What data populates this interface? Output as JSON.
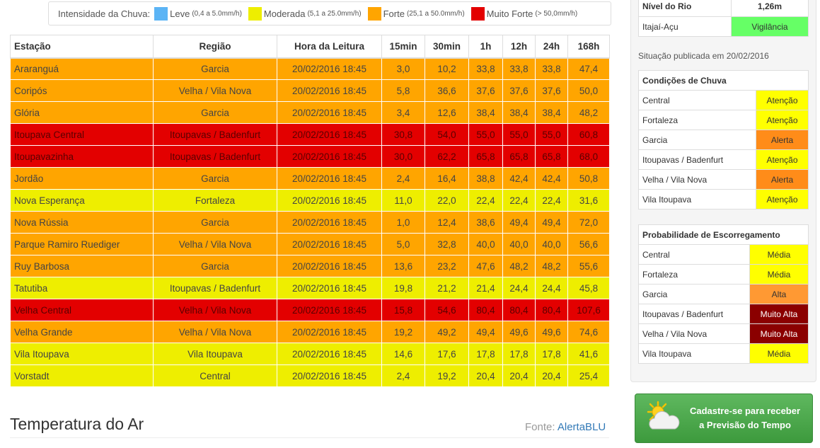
{
  "legend": {
    "title": "Intensidade da Chuva:",
    "items": [
      {
        "label": "Leve",
        "range": "(0,4 a 5.0mm/h)",
        "color": "#5bb4f5"
      },
      {
        "label": "Moderada",
        "range": "(5,1 a 25.0mm/h)",
        "color": "#eeee00"
      },
      {
        "label": "Forte",
        "range": "(25,1 a 50.0mm/h)",
        "color": "#ffa500"
      },
      {
        "label": "Muito Forte",
        "range": "(> 50,0mm/h)",
        "color": "#e30000"
      }
    ]
  },
  "table": {
    "headers": [
      "Estação",
      "Região",
      "Hora da Leitura",
      "15min",
      "30min",
      "1h",
      "12h",
      "24h",
      "168h"
    ],
    "rows": [
      {
        "level": "laranja",
        "cells": [
          "Araranguá",
          "Garcia",
          "20/02/2016 18:45",
          "3,0",
          "10,2",
          "33,8",
          "33,8",
          "33,8",
          "47,4"
        ]
      },
      {
        "level": "laranja",
        "cells": [
          "Coripós",
          "Velha / Vila Nova",
          "20/02/2016 18:45",
          "5,8",
          "36,6",
          "37,6",
          "37,6",
          "37,6",
          "50,0"
        ]
      },
      {
        "level": "laranja",
        "cells": [
          "Glória",
          "Garcia",
          "20/02/2016 18:45",
          "3,4",
          "12,6",
          "38,4",
          "38,4",
          "38,4",
          "48,2"
        ]
      },
      {
        "level": "vermelho",
        "cells": [
          "Itoupava Central",
          "Itoupavas / Badenfurt",
          "20/02/2016 18:45",
          "30,8",
          "54,0",
          "55,0",
          "55,0",
          "55,0",
          "60,8"
        ]
      },
      {
        "level": "vermelho",
        "cells": [
          "Itoupavazinha",
          "Itoupavas / Badenfurt",
          "20/02/2016 18:45",
          "30,0",
          "62,2",
          "65,8",
          "65,8",
          "65,8",
          "68,0"
        ]
      },
      {
        "level": "laranja",
        "cells": [
          "Jordão",
          "Garcia",
          "20/02/2016 18:45",
          "2,4",
          "16,4",
          "38,8",
          "42,4",
          "42,4",
          "50,8"
        ]
      },
      {
        "level": "amarelo",
        "cells": [
          "Nova Esperança",
          "Fortaleza",
          "20/02/2016 18:45",
          "11,0",
          "22,0",
          "22,4",
          "22,4",
          "22,4",
          "31,6"
        ]
      },
      {
        "level": "laranja",
        "cells": [
          "Nova Rússia",
          "Garcia",
          "20/02/2016 18:45",
          "1,0",
          "12,4",
          "38,6",
          "49,4",
          "49,4",
          "72,0"
        ]
      },
      {
        "level": "laranja",
        "cells": [
          "Parque Ramiro Ruediger",
          "Velha / Vila Nova",
          "20/02/2016 18:45",
          "5,0",
          "32,8",
          "40,0",
          "40,0",
          "40,0",
          "56,6"
        ]
      },
      {
        "level": "laranja",
        "cells": [
          "Ruy Barbosa",
          "Garcia",
          "20/02/2016 18:45",
          "13,6",
          "23,2",
          "47,6",
          "48,2",
          "48,2",
          "55,6"
        ]
      },
      {
        "level": "amarelo",
        "cells": [
          "Tatutiba",
          "Itoupavas / Badenfurt",
          "20/02/2016 18:45",
          "19,8",
          "21,2",
          "21,4",
          "24,4",
          "24,4",
          "45,8"
        ]
      },
      {
        "level": "vermelho",
        "cells": [
          "Velha Central",
          "Velha / Vila Nova",
          "20/02/2016 18:45",
          "15,8",
          "54,6",
          "80,4",
          "80,4",
          "80,4",
          "107,6"
        ]
      },
      {
        "level": "laranja",
        "cells": [
          "Velha Grande",
          "Velha / Vila Nova",
          "20/02/2016 18:45",
          "19,2",
          "49,2",
          "49,4",
          "49,6",
          "49,6",
          "74,6"
        ]
      },
      {
        "level": "amarelo",
        "cells": [
          "Vila Itoupava",
          "Vila Itoupava",
          "20/02/2016 18:45",
          "14,6",
          "17,6",
          "17,8",
          "17,8",
          "17,8",
          "41,6"
        ]
      },
      {
        "level": "amarelo",
        "cells": [
          "Vorstadt",
          "Central",
          "20/02/2016 18:45",
          "2,4",
          "19,2",
          "20,4",
          "20,4",
          "20,4",
          "25,4"
        ]
      }
    ]
  },
  "temperatura": {
    "title": "Temperatura do Ar",
    "fonte_label": "Fonte:",
    "fonte_link": "AlertaBLU"
  },
  "rio": {
    "header_label": "Nível do Rio",
    "header_value": "1,26m",
    "name": "Itajaí-Açu",
    "status": "Vigilância",
    "situacao": "Situação publicada em 20/02/2016"
  },
  "chuva": {
    "title": "Condições de Chuva",
    "rows": [
      {
        "name": "Central",
        "value": "Atenção",
        "cls": "v-atencao"
      },
      {
        "name": "Fortaleza",
        "value": "Atenção",
        "cls": "v-atencao"
      },
      {
        "name": "Garcia",
        "value": "Alerta",
        "cls": "v-alerta"
      },
      {
        "name": "Itoupavas / Badenfurt",
        "value": "Atenção",
        "cls": "v-atencao"
      },
      {
        "name": "Velha / Vila Nova",
        "value": "Alerta",
        "cls": "v-alerta"
      },
      {
        "name": "Vila Itoupava",
        "value": "Atenção",
        "cls": "v-atencao"
      }
    ]
  },
  "escorregamento": {
    "title": "Probabilidade de Escorregamento",
    "rows": [
      {
        "name": "Central",
        "value": "Média",
        "cls": "v-media"
      },
      {
        "name": "Fortaleza",
        "value": "Média",
        "cls": "v-media"
      },
      {
        "name": "Garcia",
        "value": "Alta",
        "cls": "v-alta"
      },
      {
        "name": "Itoupavas / Badenfurt",
        "value": "Muito Alta",
        "cls": "v-muitoalta"
      },
      {
        "name": "Velha / Vila Nova",
        "value": "Muito Alta",
        "cls": "v-muitoalta"
      },
      {
        "name": "Vila Itoupava",
        "value": "Média",
        "cls": "v-media"
      }
    ]
  },
  "cta": {
    "line1": "Cadastre-se para receber",
    "line2": "a Previsão do Tempo",
    "icon": "weather-icon"
  }
}
